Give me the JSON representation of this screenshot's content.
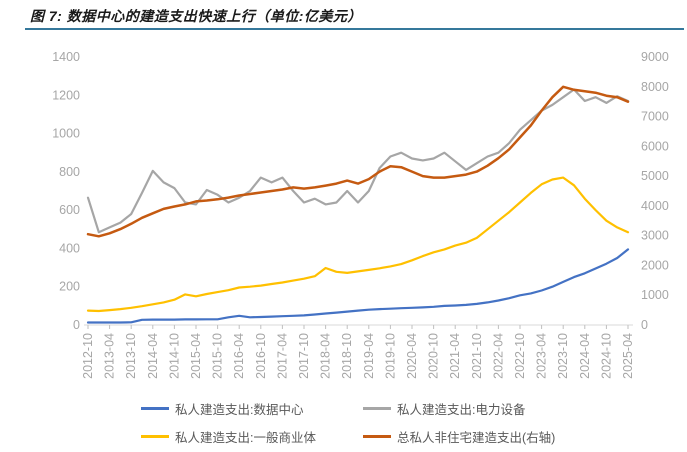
{
  "header": {
    "title": "图 7: 数据中心的建造支出快速上行（单位:亿美元）",
    "rule_color": "#35789B"
  },
  "style": {
    "axis_text_color": "#a6a6a6",
    "axis_line_color": "#d9d9d9",
    "tick_color": "#bfbfbf",
    "legend_text_color": "#595959"
  },
  "chart_data": {
    "type": "line",
    "title": "数据中心的建造支出快速上行",
    "unit": "亿美元",
    "grid": false,
    "legend_position": "bottom",
    "left_axis": {
      "min": 0,
      "max": 1400,
      "step": 200,
      "ticks": [
        0,
        200,
        400,
        600,
        800,
        1000,
        1200,
        1400
      ]
    },
    "right_axis": {
      "min": 0,
      "max": 9000,
      "step": 1000,
      "ticks": [
        0,
        1000,
        2000,
        3000,
        4000,
        5000,
        6000,
        7000,
        8000,
        9000
      ]
    },
    "x": [
      "2012-10",
      "2013-01",
      "2013-04",
      "2013-07",
      "2013-10",
      "2014-01",
      "2014-04",
      "2014-07",
      "2014-10",
      "2015-01",
      "2015-04",
      "2015-07",
      "2015-10",
      "2016-01",
      "2016-04",
      "2016-07",
      "2016-10",
      "2017-01",
      "2017-04",
      "2017-07",
      "2017-10",
      "2018-01",
      "2018-04",
      "2018-07",
      "2018-10",
      "2019-01",
      "2019-04",
      "2019-07",
      "2019-10",
      "2020-01",
      "2020-04",
      "2020-07",
      "2020-10",
      "2021-01",
      "2021-04",
      "2021-07",
      "2021-10",
      "2022-01",
      "2022-04",
      "2022-07",
      "2022-10",
      "2023-01",
      "2023-04",
      "2023-07",
      "2023-10",
      "2024-01",
      "2024-04",
      "2024-07",
      "2024-10",
      "2025-01",
      "2025-04"
    ],
    "x_tick_labels": [
      "2012-10",
      "2013-04",
      "2013-10",
      "2014-04",
      "2014-10",
      "2015-04",
      "2015-10",
      "2016-04",
      "2016-10",
      "2017-04",
      "2017-10",
      "2018-04",
      "2018-10",
      "2019-04",
      "2019-10",
      "2020-04",
      "2020-10",
      "2021-04",
      "2021-10",
      "2022-04",
      "2022-10",
      "2023-04",
      "2023-10",
      "2024-04",
      "2024-10",
      "2025-04"
    ],
    "series": [
      {
        "key": "data-center",
        "name": "私人建造支出:数据中心",
        "color": "#4472C4",
        "axis": "left",
        "values": [
          13,
          13,
          13,
          13,
          14,
          27,
          28,
          28,
          28,
          29,
          29,
          30,
          30,
          40,
          48,
          40,
          42,
          44,
          46,
          48,
          50,
          55,
          60,
          65,
          70,
          75,
          80,
          83,
          85,
          88,
          90,
          92,
          95,
          100,
          102,
          105,
          110,
          118,
          128,
          140,
          155,
          165,
          180,
          200,
          225,
          250,
          270,
          295,
          320,
          350,
          395
        ]
      },
      {
        "key": "power-equipment",
        "name": "私人建造支出:电力设备",
        "color": "#A6A6A6",
        "axis": "left",
        "values": [
          665,
          485,
          510,
          535,
          580,
          690,
          805,
          745,
          715,
          640,
          630,
          705,
          680,
          640,
          665,
          700,
          770,
          745,
          770,
          700,
          640,
          660,
          630,
          640,
          700,
          640,
          700,
          820,
          880,
          900,
          870,
          860,
          870,
          900,
          855,
          810,
          845,
          880,
          900,
          950,
          1020,
          1070,
          1120,
          1150,
          1190,
          1230,
          1170,
          1190,
          1160,
          1195,
          1170
        ]
      },
      {
        "key": "general-commercial",
        "name": "私人建造支出:一般商业体",
        "color": "#FFC000",
        "axis": "left",
        "values": [
          75,
          73,
          78,
          83,
          90,
          98,
          108,
          118,
          132,
          160,
          150,
          162,
          172,
          182,
          196,
          200,
          206,
          214,
          222,
          232,
          242,
          255,
          298,
          278,
          272,
          280,
          288,
          296,
          306,
          318,
          338,
          360,
          380,
          395,
          415,
          430,
          455,
          500,
          545,
          590,
          640,
          690,
          735,
          760,
          770,
          730,
          660,
          600,
          545,
          510,
          485
        ]
      },
      {
        "key": "total-nonresidential",
        "name": "总私人非住宅建造支出(右轴)",
        "color": "#C55A11",
        "axis": "right",
        "values": [
          3050,
          2980,
          3080,
          3220,
          3400,
          3600,
          3750,
          3900,
          3980,
          4050,
          4150,
          4180,
          4220,
          4280,
          4350,
          4400,
          4450,
          4500,
          4550,
          4620,
          4580,
          4620,
          4680,
          4750,
          4850,
          4750,
          4900,
          5150,
          5330,
          5300,
          5150,
          5000,
          4950,
          4950,
          5000,
          5050,
          5150,
          5350,
          5600,
          5900,
          6300,
          6700,
          7200,
          7650,
          8000,
          7900,
          7850,
          7800,
          7700,
          7650,
          7500
        ]
      }
    ],
    "legend_order": [
      0,
      1,
      2,
      3
    ]
  }
}
